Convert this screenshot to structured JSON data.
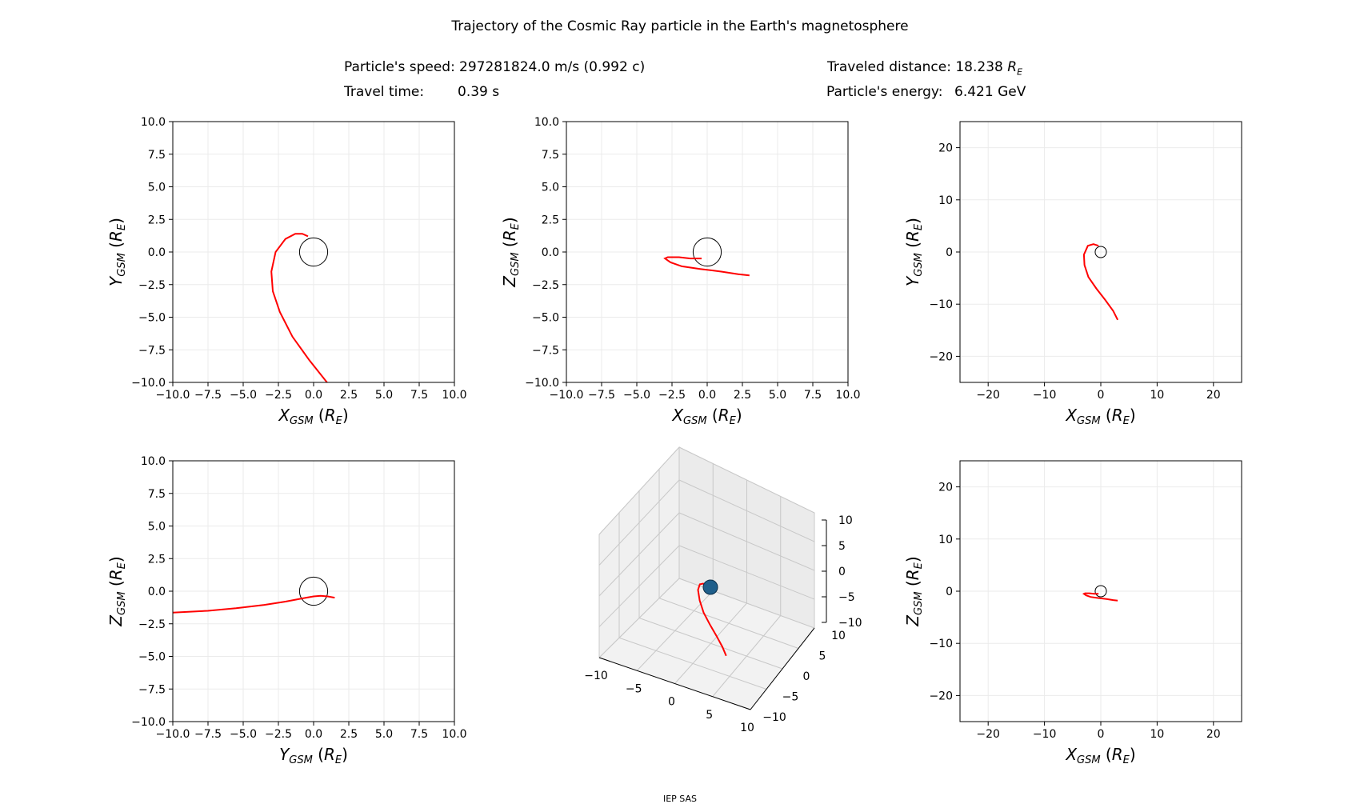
{
  "figure": {
    "title": "Trajectory of the Cosmic Ray particle in the Earth's magnetosphere",
    "speed_label": "Particle's speed:",
    "speed_value": "297281824.0 m/s (0.992 c)",
    "time_label": "Travel time:",
    "time_value": "0.39 s",
    "distance_label": "Traveled distance:",
    "distance_value": "18.238",
    "distance_unit": "R",
    "distance_unit_sub": "E",
    "energy_label": "Particle's energy:",
    "energy_value": "6.421 GeV",
    "footer": "IEP SAS"
  },
  "colors": {
    "trajectory": "#ff0000",
    "earth_outline": "#000000",
    "earth_3d": "#1f5f8b",
    "grid": "#ebebeb"
  },
  "chart_data": [
    {
      "type": "line",
      "xlabel": "X",
      "xlabel_sub": "GSM",
      "ylabel": "Y",
      "ylabel_sub": "GSM",
      "unit": "R",
      "unit_sub": "E",
      "xlim": [
        -10,
        10
      ],
      "ylim": [
        -10,
        10
      ],
      "xticks": [
        -10,
        -7.5,
        -5,
        -2.5,
        0,
        2.5,
        5,
        7.5,
        10
      ],
      "yticks": [
        -10,
        -7.5,
        -5,
        -2.5,
        0,
        2.5,
        5,
        7.5,
        10
      ],
      "tick_decimals": 1,
      "earth_radius": 1,
      "series": [
        {
          "x": [
            -0.4,
            -0.8,
            -1.3,
            -2.0,
            -2.7,
            -3.0,
            -2.9,
            -2.4,
            -1.5,
            -0.3,
            1.1
          ],
          "y": [
            1.2,
            1.4,
            1.4,
            1.0,
            0.0,
            -1.5,
            -3.0,
            -4.6,
            -6.5,
            -8.3,
            -10.2
          ]
        }
      ]
    },
    {
      "type": "line",
      "xlabel": "X",
      "xlabel_sub": "GSM",
      "ylabel": "Z",
      "ylabel_sub": "GSM",
      "unit": "R",
      "unit_sub": "E",
      "xlim": [
        -10,
        10
      ],
      "ylim": [
        -10,
        10
      ],
      "xticks": [
        -10,
        -7.5,
        -5,
        -2.5,
        0,
        2.5,
        5,
        7.5,
        10
      ],
      "yticks": [
        -10,
        -7.5,
        -5,
        -2.5,
        0,
        2.5,
        5,
        7.5,
        10
      ],
      "tick_decimals": 1,
      "earth_radius": 1,
      "series": [
        {
          "x": [
            -0.4,
            -1.2,
            -2.0,
            -2.8,
            -3.0,
            -2.6,
            -1.8,
            -0.5,
            1.0,
            2.2,
            3.0
          ],
          "y": [
            -0.5,
            -0.5,
            -0.4,
            -0.4,
            -0.5,
            -0.8,
            -1.1,
            -1.3,
            -1.5,
            -1.7,
            -1.8
          ]
        }
      ]
    },
    {
      "type": "line",
      "xlabel": "X",
      "xlabel_sub": "GSM",
      "ylabel": "Y",
      "ylabel_sub": "GSM",
      "unit": "R",
      "unit_sub": "E",
      "xlim": [
        -25,
        25
      ],
      "ylim": [
        -25,
        25
      ],
      "xticks": [
        -20,
        -10,
        0,
        10,
        20
      ],
      "yticks": [
        -20,
        -10,
        0,
        10,
        20
      ],
      "tick_decimals": 0,
      "earth_radius": 1,
      "series": [
        {
          "x": [
            -0.4,
            -1.3,
            -2.3,
            -3.0,
            -2.9,
            -2.2,
            -0.8,
            0.8,
            2.2,
            3.0
          ],
          "y": [
            1.2,
            1.5,
            1.2,
            -0.5,
            -2.5,
            -4.8,
            -7.0,
            -9.2,
            -11.3,
            -13.0
          ]
        }
      ]
    },
    {
      "type": "line",
      "xlabel": "Y",
      "xlabel_sub": "GSM",
      "ylabel": "Z",
      "ylabel_sub": "GSM",
      "unit": "R",
      "unit_sub": "E",
      "xlim": [
        -10,
        10
      ],
      "ylim": [
        -10,
        10
      ],
      "xticks": [
        -10,
        -7.5,
        -5,
        -2.5,
        0,
        2.5,
        5,
        7.5,
        10
      ],
      "yticks": [
        -10,
        -7.5,
        -5,
        -2.5,
        0,
        2.5,
        5,
        7.5,
        10
      ],
      "tick_decimals": 1,
      "earth_radius": 1,
      "series": [
        {
          "x": [
            1.5,
            1.0,
            0.5,
            0.0,
            -0.8,
            -2.0,
            -3.5,
            -5.5,
            -7.5,
            -10.2
          ],
          "y": [
            -0.5,
            -0.4,
            -0.35,
            -0.4,
            -0.55,
            -0.8,
            -1.05,
            -1.3,
            -1.5,
            -1.65
          ]
        }
      ]
    },
    {
      "type": "line3d",
      "xticks": [
        -10,
        -5,
        0,
        5,
        10
      ],
      "yticks": [
        -10,
        -5,
        0,
        5,
        10
      ],
      "zticks": [
        -10,
        -5,
        0,
        5,
        10
      ],
      "xlim": [
        -10,
        10
      ],
      "ylim": [
        -10,
        10
      ],
      "zlim": [
        -10,
        10
      ],
      "earth_radius": 1,
      "series": [
        {
          "x": [
            -0.4,
            -1.3,
            -2.3,
            -3.0,
            -2.9,
            -2.2,
            -0.8,
            0.8,
            2.2,
            3.0
          ],
          "y": [
            1.2,
            1.5,
            1.2,
            -0.5,
            -2.5,
            -4.8,
            -7.0,
            -9.2,
            -11.3,
            -13.0
          ],
          "z": [
            -0.5,
            -0.5,
            -0.4,
            -0.4,
            -0.5,
            -0.8,
            -1.1,
            -1.3,
            -1.5,
            -1.8
          ]
        }
      ]
    },
    {
      "type": "line",
      "xlabel": "X",
      "xlabel_sub": "GSM",
      "ylabel": "Z",
      "ylabel_sub": "GSM",
      "unit": "R",
      "unit_sub": "E",
      "xlim": [
        -25,
        25
      ],
      "ylim": [
        -25,
        25
      ],
      "xticks": [
        -20,
        -10,
        0,
        10,
        20
      ],
      "yticks": [
        -20,
        -10,
        0,
        10,
        20
      ],
      "tick_decimals": 0,
      "earth_radius": 1,
      "series": [
        {
          "x": [
            -0.4,
            -1.2,
            -2.0,
            -2.8,
            -3.0,
            -2.6,
            -1.8,
            -0.5,
            1.0,
            2.2,
            3.0
          ],
          "y": [
            -0.5,
            -0.5,
            -0.4,
            -0.4,
            -0.5,
            -0.8,
            -1.1,
            -1.3,
            -1.5,
            -1.7,
            -1.8
          ]
        }
      ]
    }
  ]
}
